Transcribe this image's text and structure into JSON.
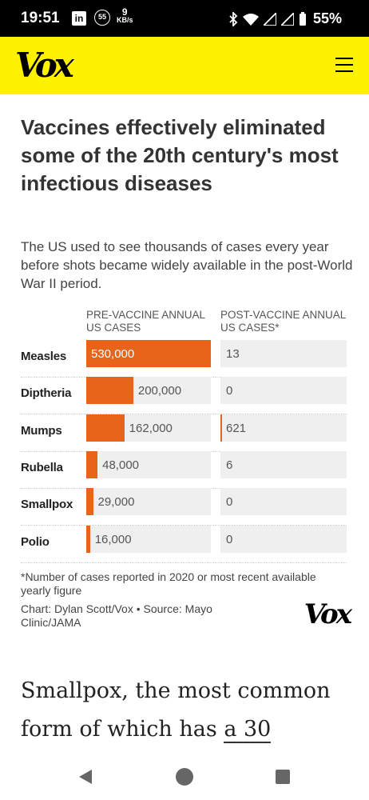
{
  "status_bar": {
    "time": "19:51",
    "linkedin_icon": "linkedin-icon",
    "badge": "55",
    "speed_value": "9",
    "speed_unit": "KB/s",
    "battery": "55%"
  },
  "header": {
    "logo": "Vox",
    "menu_icon": "hamburger-menu-icon",
    "background": "#fff200"
  },
  "article": {
    "headline": "Vaccines effectively eliminated some of the 20th century's most infectious diseases",
    "subtitle": "The US used to see thousands of cases every year before shots became widely available in the post-World War II period.",
    "body_prefix": "Smallpox, the most common form of which has ",
    "body_link": "a 30"
  },
  "chart_data": {
    "type": "bar",
    "columns": [
      "PRE-VACCINE ANNUAL US CASES",
      "POST-VACCINE ANNUAL US CASES*"
    ],
    "categories": [
      "Measles",
      "Diptheria",
      "Mumps",
      "Rubella",
      "Smallpox",
      "Polio"
    ],
    "series": [
      {
        "values": [
          530000,
          200000,
          162000,
          48000,
          29000,
          16000
        ],
        "labels": [
          "530,000",
          "200,000",
          "162,000",
          "48,000",
          "29,000",
          "16,000"
        ]
      },
      {
        "values": [
          13,
          0,
          621,
          6,
          0,
          0
        ],
        "labels": [
          "13",
          "0",
          "621",
          "6",
          "0",
          "0"
        ]
      }
    ],
    "bar_color": "#e8641b",
    "footnote": "*Number of cases reported in 2020 or most recent available yearly figure",
    "credit": "Chart: Dylan Scott/Vox • Source: Mayo Clinic/JAMA",
    "credit_logo": "Vox"
  }
}
